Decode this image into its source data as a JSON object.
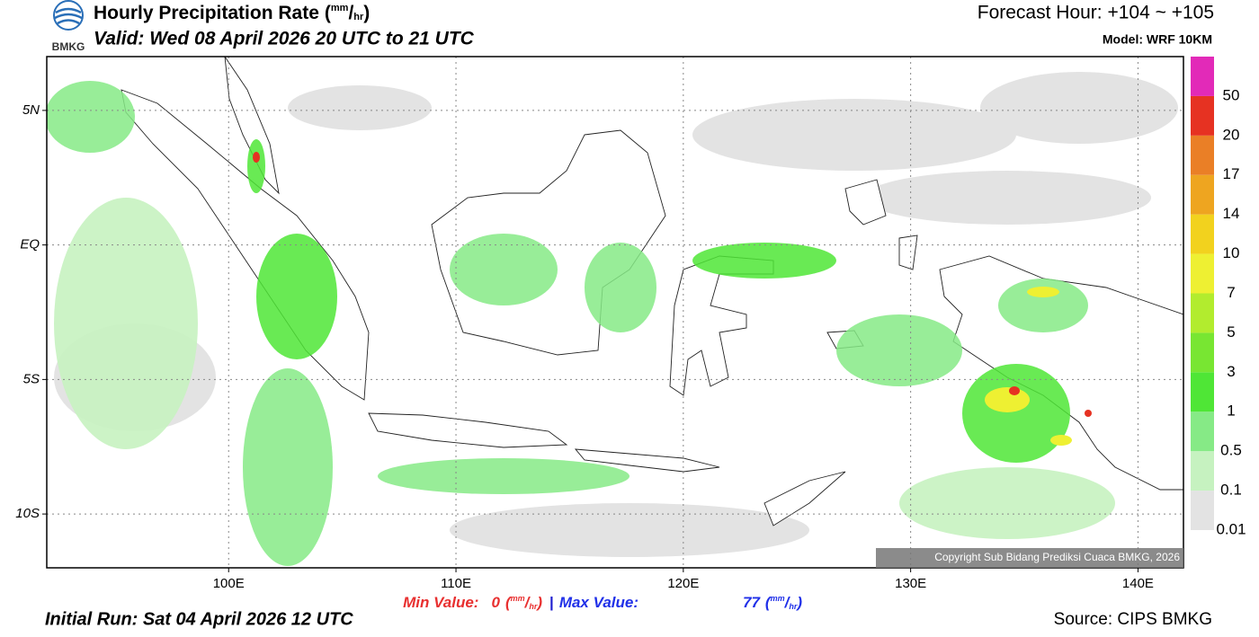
{
  "header": {
    "logo_text": "BMKG",
    "title": "Hourly Precipitation Rate",
    "title_unit": [
      "(",
      "mm",
      "/",
      "hr",
      ")"
    ],
    "valid": "Valid: Wed 08 April 2026 20 UTC to 21 UTC",
    "forecast_hour": "Forecast Hour: +104 ~ +105",
    "model": "Model: WRF 10KM"
  },
  "map": {
    "xlim": [
      92,
      142
    ],
    "ylim": [
      -12,
      7
    ],
    "xticks": [
      {
        "value": 100,
        "label": "100E"
      },
      {
        "value": 110,
        "label": "110E"
      },
      {
        "value": 120,
        "label": "120E"
      },
      {
        "value": 130,
        "label": "130E"
      },
      {
        "value": 140,
        "label": "140E"
      }
    ],
    "yticks": [
      {
        "value": 5,
        "label": "5N"
      },
      {
        "value": 0,
        "label": "EQ"
      },
      {
        "value": -5,
        "label": "5S"
      },
      {
        "value": -10,
        "label": "10S"
      }
    ],
    "grid": true,
    "copyright": "Copyright Sub Bidang Prediksi Cuaca BMKG, 2026"
  },
  "colorbar": {
    "levels": [
      0.01,
      0.1,
      0.5,
      1,
      3,
      5,
      7,
      10,
      14,
      17,
      20,
      50
    ],
    "colors": [
      "#e3e3e3",
      "#c6f2c0",
      "#86ea86",
      "#4fe636",
      "#78e632",
      "#b2ec2e",
      "#eef032",
      "#f2d21e",
      "#eea520",
      "#ea7f26",
      "#e63222",
      "#e22ab8"
    ]
  },
  "footer": {
    "min_label": "Min Value:",
    "min_value": 0,
    "min_unit": [
      "(",
      "mm",
      "/",
      "hr",
      ")"
    ],
    "separator": "|",
    "max_label": "Max Value:",
    "max_value": 77,
    "max_unit": [
      "(",
      "mm",
      "/",
      "hr",
      ")"
    ],
    "initial_run": "Initial Run: Sat 04 April 2026 12 UTC",
    "source": "Source: CIPS BMKG"
  }
}
